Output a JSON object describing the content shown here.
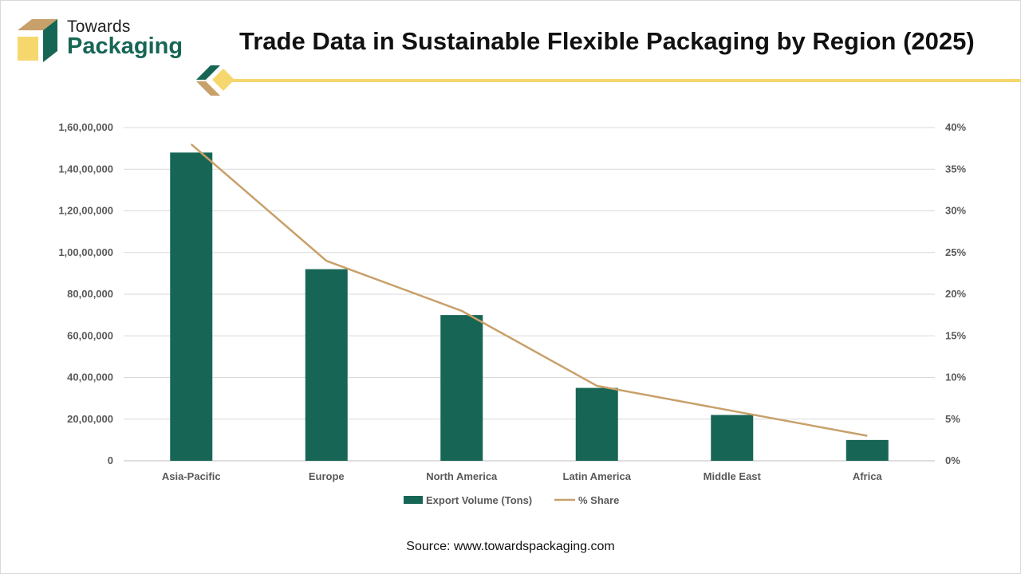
{
  "brand": {
    "line1": "Towards",
    "line2": "Packaging"
  },
  "title": "Trade Data in Sustainable Flexible Packaging by Region (2025)",
  "source": "Source: www.towardspackaging.com",
  "colors": {
    "bar": "#176655",
    "line": "#c8a06a",
    "accent_yellow": "#f5d76e",
    "brand_green": "#176655",
    "brand_tan": "#c8a06a"
  },
  "chart_data": {
    "type": "bar",
    "title": "Trade Data in Sustainable Flexible Packaging by Region (2025)",
    "categories": [
      "Asia-Pacific",
      "Europe",
      "North America",
      "Latin America",
      "Middle East",
      "Africa"
    ],
    "series": [
      {
        "name": "Export Volume (Tons)",
        "type": "bar",
        "axis": "left",
        "values": [
          14800000,
          9200000,
          7000000,
          3500000,
          2200000,
          1000000
        ]
      },
      {
        "name": "% Share",
        "type": "line",
        "axis": "right",
        "values": [
          38,
          24,
          18,
          9,
          6,
          3
        ]
      }
    ],
    "y_left": {
      "min": 0,
      "max": 16000000,
      "ticks": [
        "0",
        "20,00,000",
        "40,00,000",
        "60,00,000",
        "80,00,000",
        "1,00,00,000",
        "1,20,00,000",
        "1,40,00,000",
        "1,60,00,000"
      ]
    },
    "y_right": {
      "min": 0,
      "max": 40,
      "ticks": [
        "0%",
        "5%",
        "10%",
        "15%",
        "20%",
        "25%",
        "30%",
        "35%",
        "40%"
      ]
    },
    "grid": true,
    "legend_position": "bottom-center"
  }
}
